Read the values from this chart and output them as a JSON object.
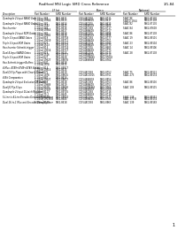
{
  "title": "RadHard MSI Logic SMD Cross Reference",
  "page": "1/1-84",
  "background_color": "#ffffff",
  "text_color": "#000000",
  "rows": [
    {
      "desc": "Quadruple 2-Input NAND Gate",
      "entries": [
        [
          "5 1/4xq 388",
          "5962-8611",
          "CD 54BCO01",
          "5962-8711",
          "54AC 86",
          "5962-87101"
        ],
        [
          "5 1/4xq 19364",
          "5962-8613",
          "CD 54886608",
          "5962-8617",
          "54ACQ 1964",
          "5962-87109"
        ]
      ]
    },
    {
      "desc": "Quadruple 2-Input NAND Gates",
      "entries": [
        [
          "5 1/4xq 382",
          "5962-8614",
          "CD 54BCO05",
          "5962-8615",
          "54AC 82",
          "5962-87102"
        ],
        [
          "5 1/4xq 1582",
          "5962-8615",
          "CD 54886508",
          "5962-8605",
          "",
          ""
        ]
      ]
    },
    {
      "desc": "Hex Inverter",
      "entries": [
        [
          "5 1/4xq 384",
          "5962-8616",
          "CD 54BCO85",
          "5962-8717",
          "54AC 84",
          "5962-87608"
        ],
        [
          "5 1/4xq 19364",
          "5962-8617",
          "CD 54886608",
          "5962-8717",
          "",
          ""
        ]
      ]
    },
    {
      "desc": "Quadruple 2-Input NOR Gates",
      "entries": [
        [
          "5 1/4xq 386",
          "5962-8618",
          "CD 54BCO05",
          "5962-8698",
          "54AC 86",
          "5962-87103"
        ],
        [
          "5 1/4xq 19986",
          "5962-8618",
          "CD 54886508",
          "5962-8698",
          "",
          ""
        ]
      ]
    },
    {
      "desc": "Triple 3-Input NAND Gates",
      "entries": [
        [
          "5 1/4xq 819",
          "5962-89718",
          "CD 54BCO85",
          "5962-8777",
          "54AC 19",
          "5962-89101"
        ],
        [
          "5 1/4xq 19819",
          "5962-89711",
          "CD 54886608",
          "5962-8751",
          "",
          ""
        ]
      ]
    },
    {
      "desc": "Triple 3-Input NOR Gates",
      "entries": [
        [
          "5 1/4xq 823",
          "5962-89722",
          "CD 54BCO33",
          "5962-8785",
          "54AC 23",
          "5962-89104"
        ],
        [
          "5 1/4xq 1523",
          "5962-89723",
          "CD 54886608",
          "5962-8775",
          "",
          ""
        ]
      ]
    },
    {
      "desc": "Hex Inverter Schmitt-trigger",
      "entries": [
        [
          "5 1/4xq 814",
          "5962-89724",
          "CD 54BCO05",
          "5962-8685",
          "54AC 14",
          "5962-89106"
        ],
        [
          "5 1/4xq 19814",
          "5962-89727",
          "CD 54886608",
          "5962-8775",
          "",
          ""
        ]
      ]
    },
    {
      "desc": "Dual 4-Input NAND Gates",
      "entries": [
        [
          "5 1/4xq 819",
          "5962-8624",
          "CD 54BCO33",
          "5962-8775",
          "54AC 28",
          "5962-87103"
        ],
        [
          "5 1/4xq 1526",
          "5962-89727",
          "CD 54886608",
          "5962-8715",
          "",
          ""
        ]
      ]
    },
    {
      "desc": "Triple 3-Input NOR Gates",
      "entries": [
        [
          "5 1/4xq 827",
          "5962-8628",
          "CD 54N/98665",
          "5962-97804",
          "",
          ""
        ],
        [
          "5 1/4xq 19827",
          "5962-89678",
          "CD 54886888",
          "5962-8764",
          "",
          ""
        ]
      ]
    },
    {
      "desc": "Hex Schmitt-trigger Buffers",
      "entries": [
        [
          "5 1/4xq 840",
          "5962-8618",
          "",
          "",
          "",
          ""
        ],
        [
          "5 1/4xq 18(6)",
          "5962-8615",
          "",
          "",
          "",
          ""
        ]
      ]
    },
    {
      "desc": "4-Mux, 4749+4749+4749 Series",
      "entries": [
        [
          "5 1/4xq 814",
          "5962-89917",
          "",
          "",
          "",
          ""
        ],
        [
          "5 1/4xq 19914",
          "5962-8615",
          "",
          "",
          "",
          ""
        ]
      ]
    },
    {
      "desc": "Dual D-Flip Flops with Clear & Preset",
      "entries": [
        [
          "5 1/4xq 875",
          "5962-8619",
          "CD 54BCO85",
          "5962-8752",
          "54AC 75",
          "5962-89121"
        ],
        [
          "5 1/4xq 1876",
          "5962-89615",
          "CD 54BCO015",
          "5962-8751",
          "54AC 273",
          "5962-89174"
        ]
      ]
    },
    {
      "desc": "4-Bit Comparators",
      "entries": [
        [
          "5 1/4xq 887",
          "5962-8614",
          "",
          "",
          "",
          ""
        ],
        [
          "5 1/4xq 19827",
          "5962-89617",
          "CD 54886808",
          "5962-8954",
          "",
          ""
        ]
      ]
    },
    {
      "desc": "Quadruple 2-Input Exclusive-OR Gates",
      "entries": [
        [
          "5 1/4xq 889",
          "5962-8618",
          "CD 54BCO85",
          "5962-8753",
          "54AC 86",
          "5962-89116"
        ],
        [
          "5 1/4xq 19989",
          "5962-8619",
          "CD 54886608",
          "5962-8753",
          "",
          ""
        ]
      ]
    },
    {
      "desc": "Dual JK Flip-Flops",
      "entries": [
        [
          "5 1/4xq 8109",
          "5962-89826",
          "CD 54N/98865",
          "5962-9764",
          "54AC 109",
          "5962-89115"
        ],
        [
          "5 1/4xq 19109",
          "5962-8626",
          "CD 54886808",
          "5962-8768",
          "",
          ""
        ]
      ]
    },
    {
      "desc": "Quadruple 2-Input D-Latch Register",
      "entries": [
        [
          "5 1/4xq 8117",
          "5962-89725",
          "CD 54BCO85",
          "5962-8716",
          "",
          ""
        ],
        [
          "5 1/4xq 75 2",
          "5962-8645",
          "CD 54886808",
          "5962-8716",
          "",
          ""
        ]
      ]
    },
    {
      "desc": "5-Line to 4-Line Encoder/Decoder/Multiplexer",
      "entries": [
        [
          "5 1/4xq 8138",
          "5962-89654",
          "CD 54BCO05",
          "5962-8777",
          "54AC 138",
          "5962-89152"
        ],
        [
          "5 1/4xq 19138 B",
          "5962-8645",
          "CD 54886608",
          "5962-8766",
          "54AC 373 B",
          "5962-89174"
        ]
      ]
    },
    {
      "desc": "Dual 16-to-1 Mux and Encoder/Demultiplexer",
      "entries": [
        [
          "5 1/4xq 8139",
          "5962-8618",
          "CD 54BCO85",
          "5962-8963",
          "54AC 139",
          "5962-89183"
        ]
      ]
    }
  ]
}
